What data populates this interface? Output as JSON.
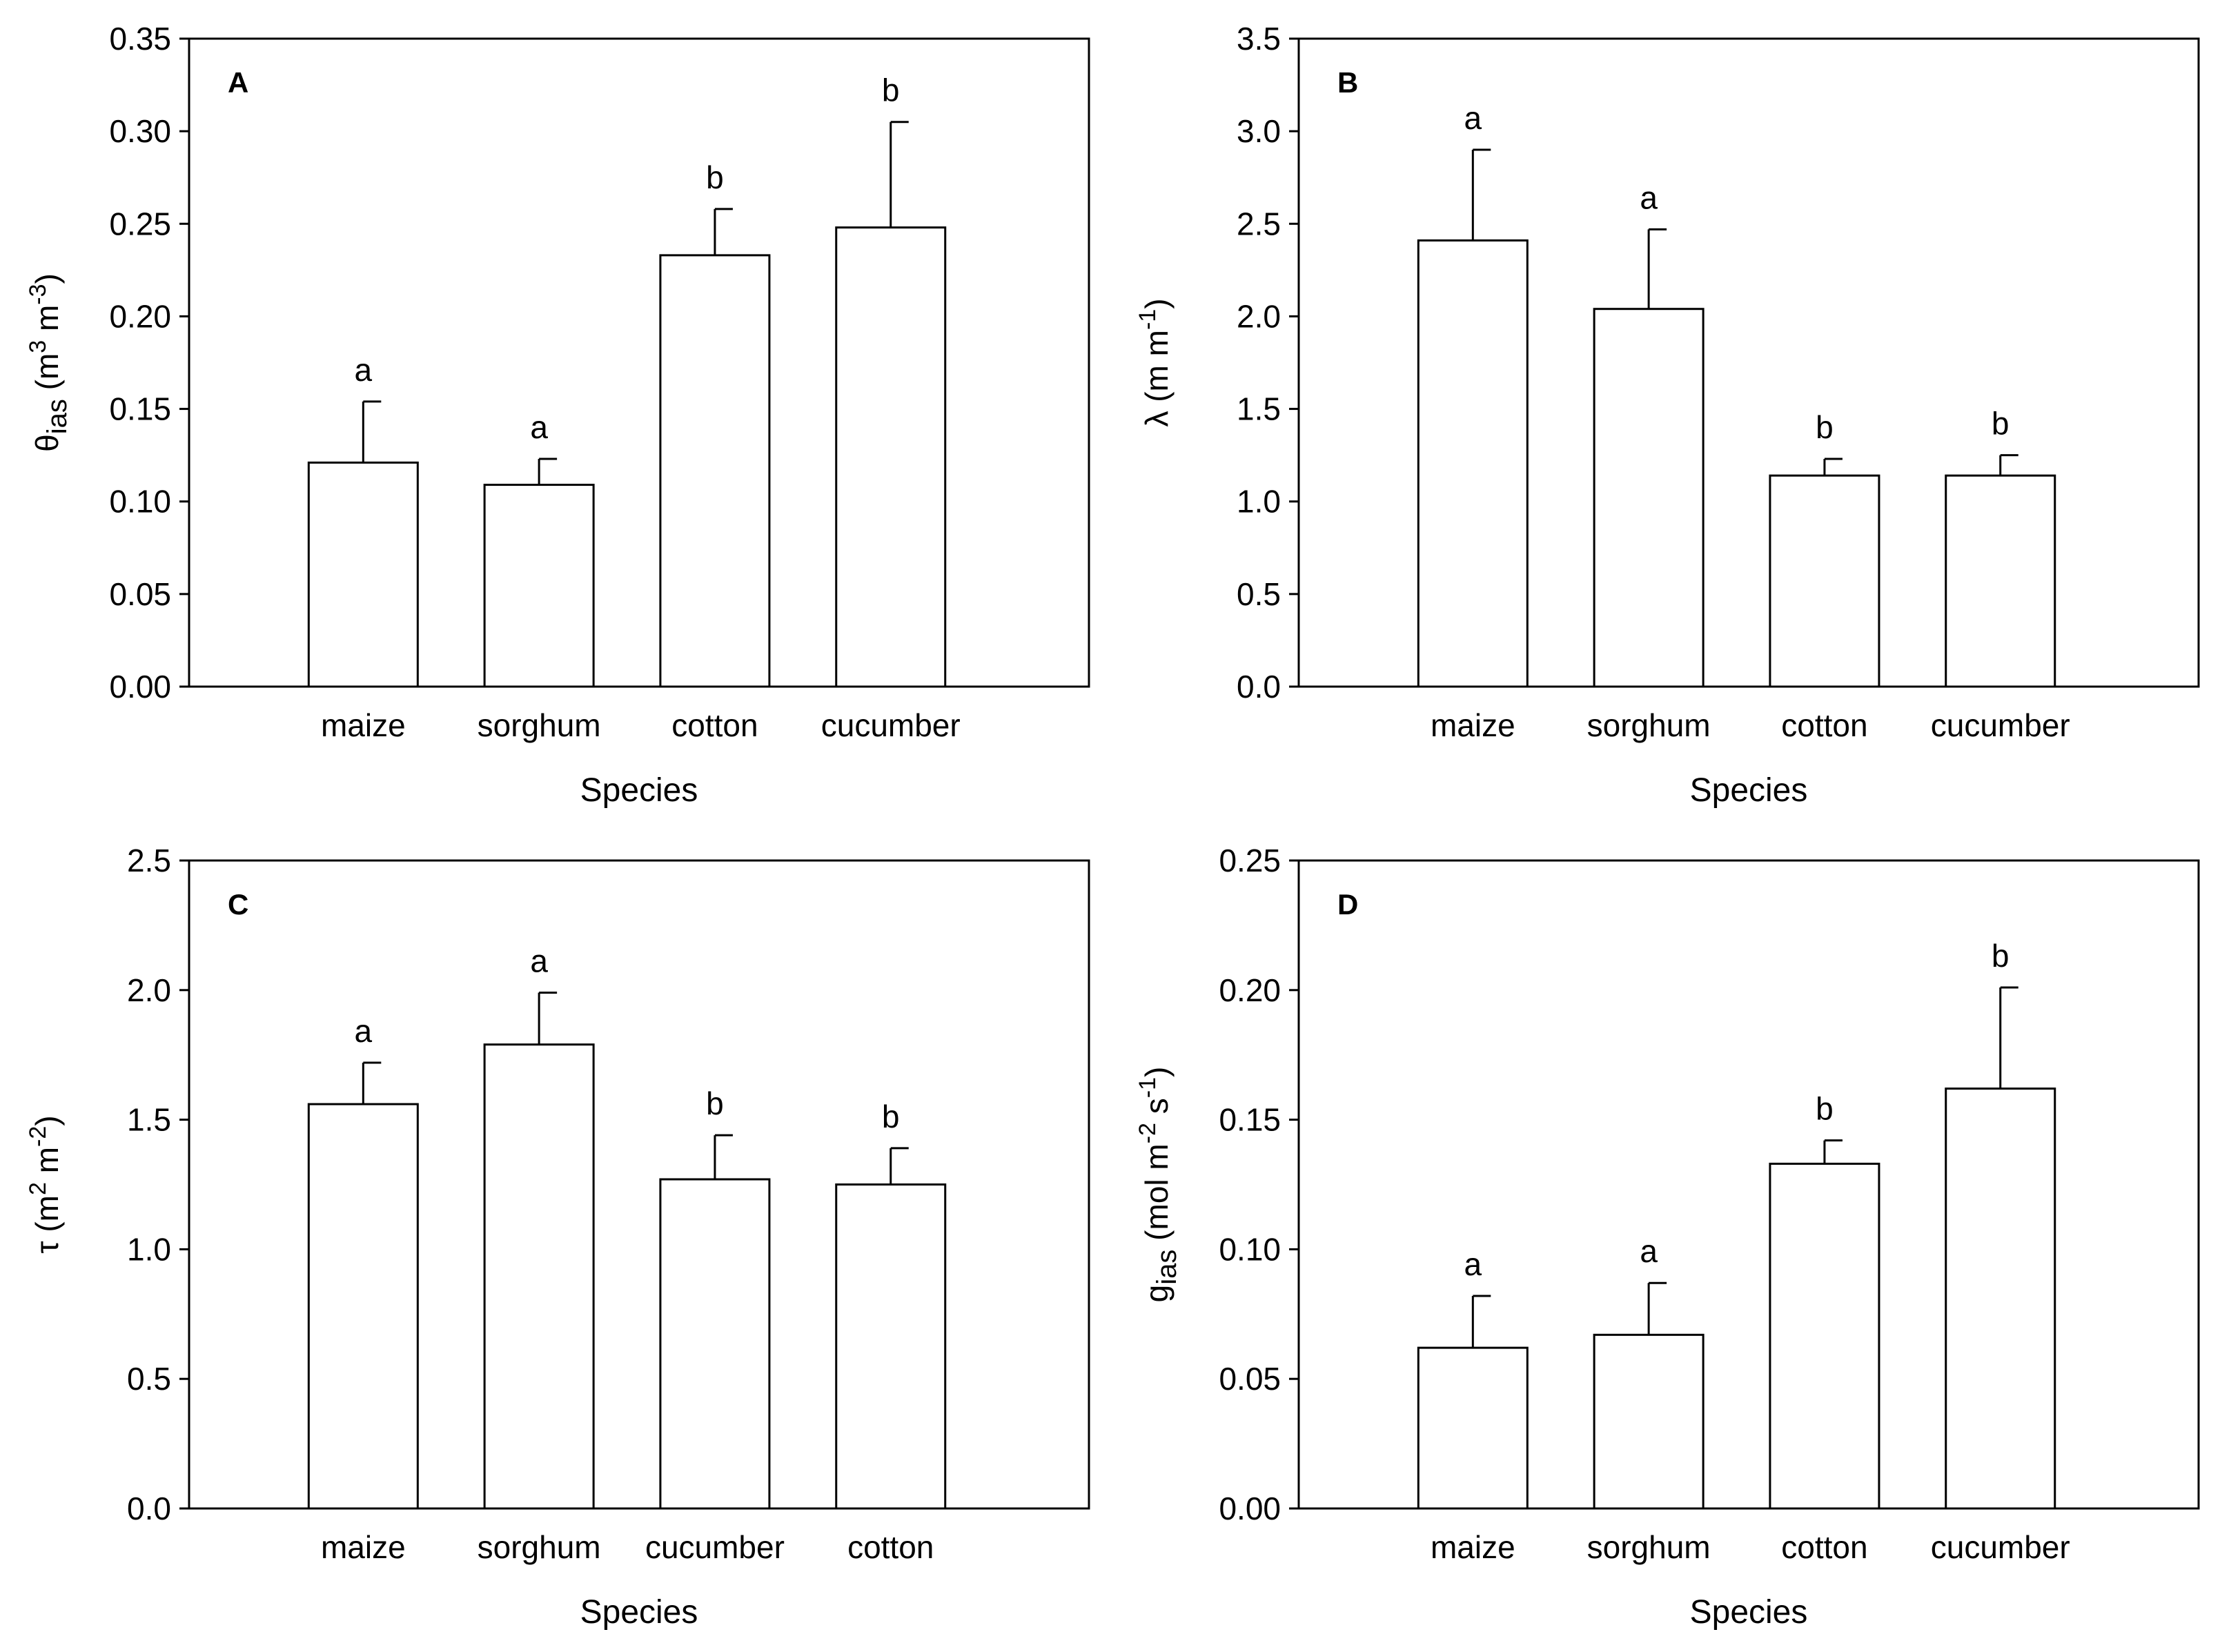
{
  "colors": {
    "bar_fill": "#ffffff",
    "stroke": "#000000",
    "background": "#ffffff"
  },
  "chart_data": [
    {
      "type": "bar",
      "panel": "A",
      "categories": [
        "maize",
        "sorghum",
        "cotton",
        "cucumber"
      ],
      "values": [
        0.121,
        0.109,
        0.233,
        0.248
      ],
      "errors": [
        0.033,
        0.014,
        0.025,
        0.057
      ],
      "significance": [
        "a",
        "a",
        "b",
        "b"
      ],
      "ylim": [
        0,
        0.35
      ],
      "ticks": [
        "0.00",
        "0.05",
        "0.10",
        "0.15",
        "0.20",
        "0.25",
        "0.30",
        "0.35"
      ],
      "xlabel": "Species",
      "ylabel": {
        "main": "θ",
        "sub": "ias",
        "rest1": " (m",
        "sup1": "3",
        "rest2": " m",
        "sup2": "-3",
        "rest3": ")"
      }
    },
    {
      "type": "bar",
      "panel": "B",
      "categories": [
        "maize",
        "sorghum",
        "cotton",
        "cucumber"
      ],
      "values": [
        2.41,
        2.04,
        1.14,
        1.14
      ],
      "errors": [
        0.49,
        0.43,
        0.09,
        0.11
      ],
      "significance": [
        "a",
        "a",
        "b",
        "b"
      ],
      "ylim": [
        0,
        3.5
      ],
      "ticks": [
        "0.0",
        "0.5",
        "1.0",
        "1.5",
        "2.0",
        "2.5",
        "3.0",
        "3.5"
      ],
      "xlabel": "Species",
      "ylabel": {
        "main": "λ",
        "sub": "",
        "rest1": " (m m",
        "sup1": "-1",
        "rest2": ")",
        "sup2": "",
        "rest3": ""
      }
    },
    {
      "type": "bar",
      "panel": "C",
      "categories": [
        "maize",
        "sorghum",
        "cucumber",
        "cotton"
      ],
      "values": [
        1.56,
        1.79,
        1.27,
        1.25
      ],
      "errors": [
        0.16,
        0.2,
        0.17,
        0.14
      ],
      "significance": [
        "a",
        "a",
        "b",
        "b"
      ],
      "ylim": [
        0,
        2.5
      ],
      "ticks": [
        "0.0",
        "0.5",
        "1.0",
        "1.5",
        "2.0",
        "2.5"
      ],
      "xlabel": "Species",
      "ylabel": {
        "main": "τ",
        "sub": "",
        "rest1": " (m",
        "sup1": "2",
        "rest2": " m",
        "sup2": "-2",
        "rest3": ")"
      }
    },
    {
      "type": "bar",
      "panel": "D",
      "categories": [
        "maize",
        "sorghum",
        "cotton",
        "cucumber"
      ],
      "values": [
        0.062,
        0.067,
        0.133,
        0.162
      ],
      "errors": [
        0.02,
        0.02,
        0.009,
        0.039
      ],
      "significance": [
        "a",
        "a",
        "b",
        "b"
      ],
      "ylim": [
        0,
        0.25
      ],
      "ticks": [
        "0.00",
        "0.05",
        "0.10",
        "0.15",
        "0.20",
        "0.25"
      ],
      "xlabel": "Species",
      "ylabel": {
        "main": "g",
        "sub": "ias",
        "rest1": " (mol m",
        "sup1": "-2",
        "rest2": " s",
        "sup2": "-1",
        "rest3": ")"
      }
    }
  ]
}
